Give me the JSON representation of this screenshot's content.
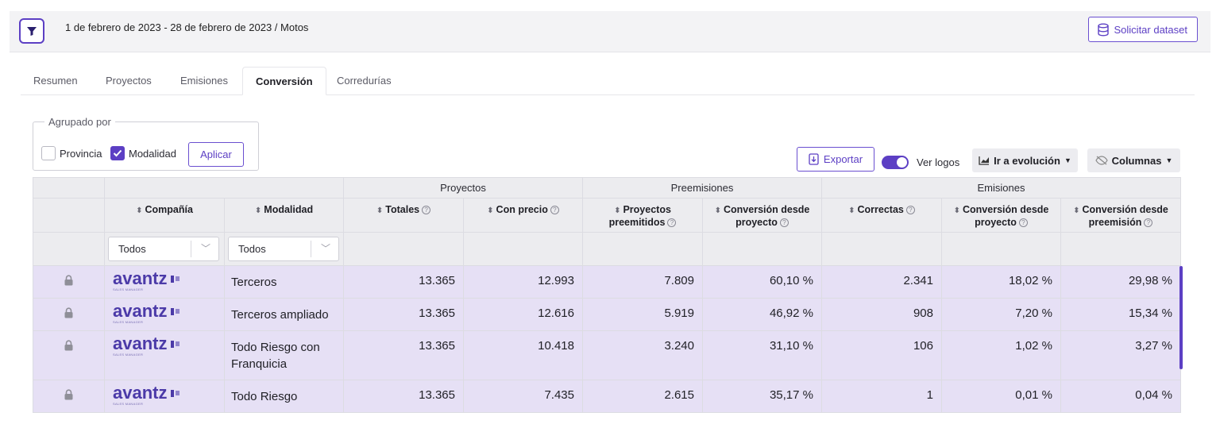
{
  "filter_bar": {
    "range_text": "1 de febrero de 2023 - 28 de febrero de 2023 / Motos",
    "dataset_button": "Solicitar dataset"
  },
  "tabs": [
    {
      "label": "Resumen",
      "active": false
    },
    {
      "label": "Proyectos",
      "active": false
    },
    {
      "label": "Emisiones",
      "active": false
    },
    {
      "label": "Conversión",
      "active": true
    },
    {
      "label": "Corredurías",
      "active": false
    }
  ],
  "grouping": {
    "legend": "Agrupado por",
    "options": [
      {
        "label": "Provincia",
        "checked": false
      },
      {
        "label": "Modalidad",
        "checked": true
      }
    ],
    "apply_label": "Aplicar"
  },
  "toolbar": {
    "export_label": "Exportar",
    "logos_label": "Ver logos",
    "logos_on": true,
    "evolution_label": "Ir a evolución",
    "columns_label": "Columnas"
  },
  "table": {
    "groups": [
      "Proyectos",
      "Preemisiones",
      "Emisiones"
    ],
    "columns": [
      "Compañía",
      "Modalidad",
      "Totales",
      "Con precio",
      "Proyectos preemitidos",
      "Conversión desde proyecto",
      "Correctas",
      "Conversión desde proyecto",
      "Conversión desde preemisión"
    ],
    "filters": {
      "company": "Todos",
      "modality": "Todos"
    },
    "rows": [
      {
        "company": "avantz",
        "modality": "Terceros",
        "totales": "13.365",
        "con_precio": "12.993",
        "preemitidos": "7.809",
        "conv_pre": "60,10 %",
        "correctas": "2.341",
        "conv_em_proy": "18,02 %",
        "conv_em_pre": "29,98 %"
      },
      {
        "company": "avantz",
        "modality": "Terceros ampliado",
        "totales": "13.365",
        "con_precio": "12.616",
        "preemitidos": "5.919",
        "conv_pre": "46,92 %",
        "correctas": "908",
        "conv_em_proy": "7,20 %",
        "conv_em_pre": "15,34 %"
      },
      {
        "company": "avantz",
        "modality": "Todo Riesgo con Franquicia",
        "totales": "13.365",
        "con_precio": "10.418",
        "preemitidos": "3.240",
        "conv_pre": "31,10 %",
        "correctas": "106",
        "conv_em_proy": "1,02 %",
        "conv_em_pre": "3,27 %"
      },
      {
        "company": "avantz",
        "modality": "Todo Riesgo",
        "totales": "13.365",
        "con_precio": "7.435",
        "preemitidos": "2.615",
        "conv_pre": "35,17 %",
        "correctas": "1",
        "conv_em_proy": "0,01 %",
        "conv_em_pre": "0,04 %"
      }
    ],
    "logo_subtext": "SALES MANAGER"
  },
  "colors": {
    "accent": "#5c3fc4",
    "row_bg": "#e6e0f5",
    "header_bg": "#ececef"
  },
  "icons": [
    "filter-icon",
    "database-icon",
    "download-icon",
    "chart-icon",
    "eye-off-icon",
    "lock-icon",
    "sort-icon",
    "help-icon",
    "chevron-down-icon"
  ]
}
